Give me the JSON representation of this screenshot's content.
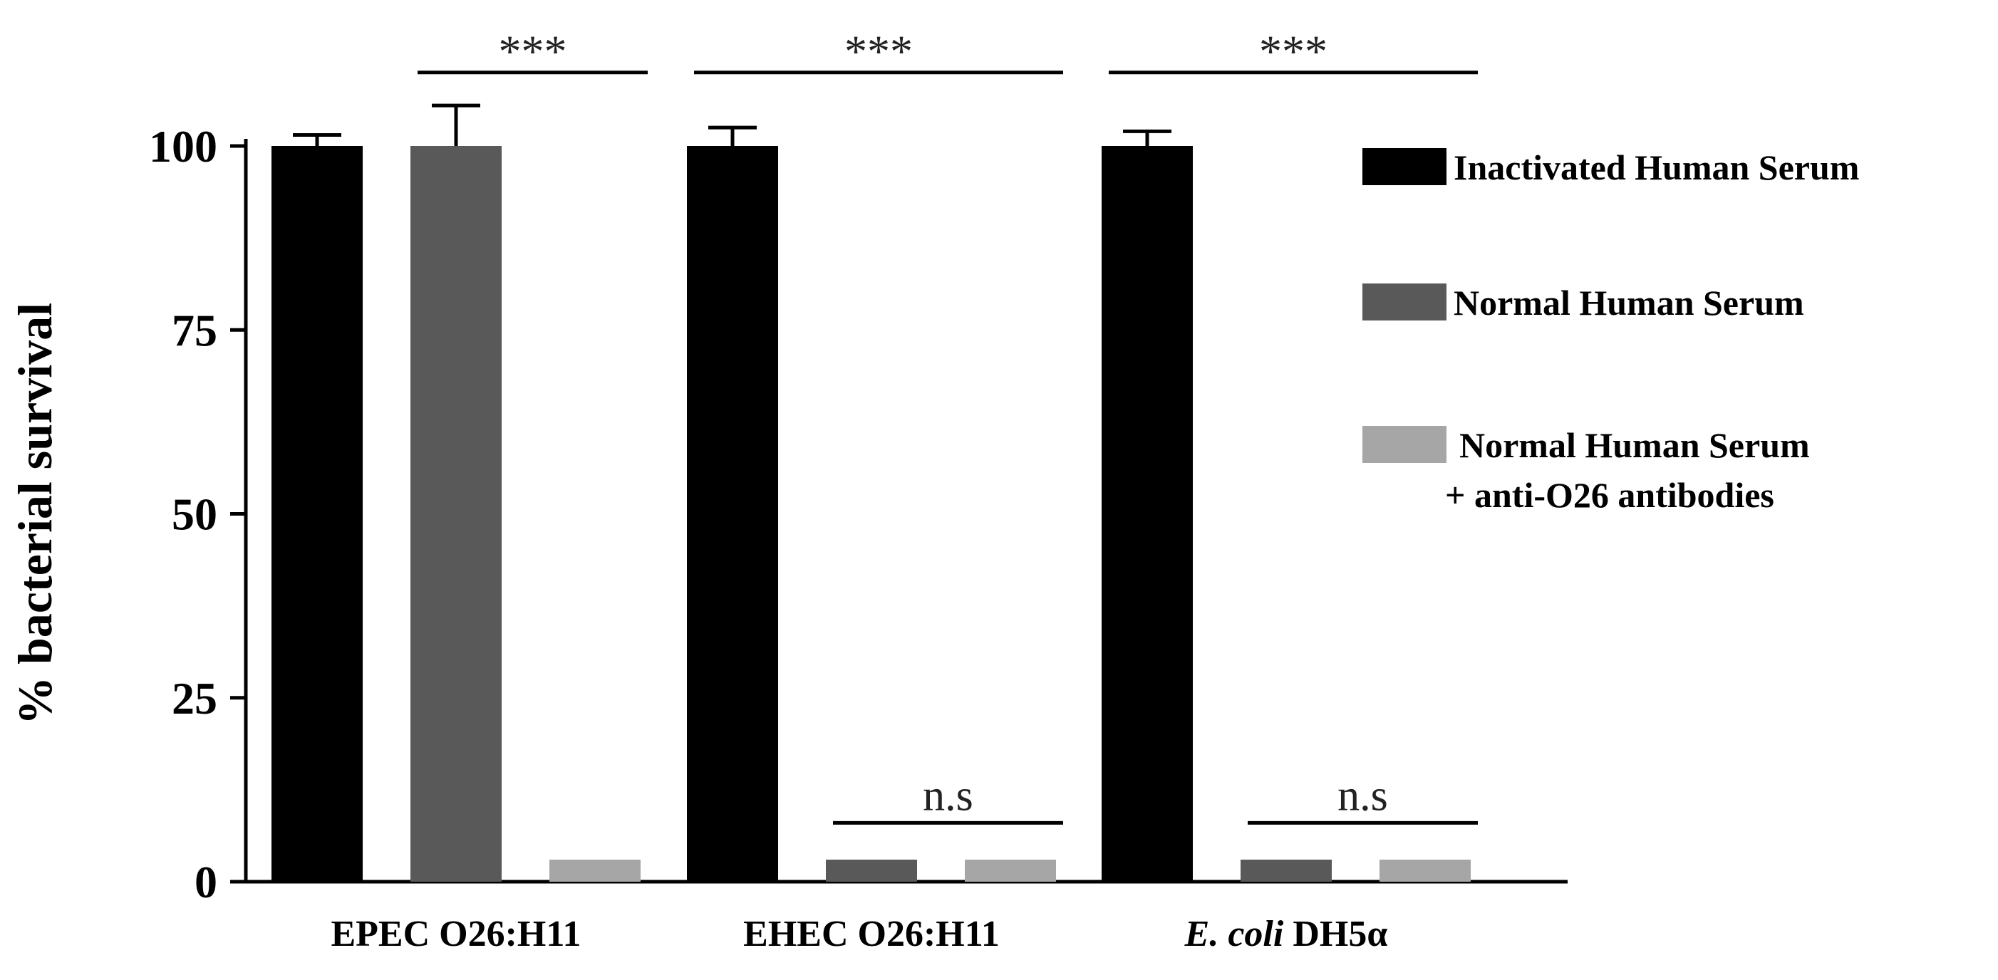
{
  "chart_data": {
    "type": "bar",
    "title": "",
    "ylabel": "% bacterial survival",
    "xlabel": "",
    "ylim": [
      0,
      100
    ],
    "yticks": [
      0,
      25,
      50,
      75,
      100
    ],
    "grid": false,
    "legend_position": "right",
    "categories": [
      {
        "prefix": "",
        "italic": "",
        "suffix": "EPEC O26:H11"
      },
      {
        "prefix": "",
        "italic": "",
        "suffix": "EHEC O26:H11"
      },
      {
        "prefix": "",
        "italic": "E. coli",
        "suffix": " DH5α"
      }
    ],
    "series": [
      {
        "name": "Inactivated Human Serum",
        "color": "#000000",
        "values": [
          100,
          100,
          100
        ],
        "errors": [
          1.5,
          2.5,
          2
        ]
      },
      {
        "name": "Normal Human Serum",
        "color": "#595959",
        "values": [
          100,
          3,
          3
        ],
        "errors": [
          5.5,
          0,
          0
        ]
      },
      {
        "name_lines": [
          "Normal Human Serum",
          "+ anti-O26 antibodies"
        ],
        "color": "#a6a6a6",
        "values": [
          3,
          3,
          3
        ],
        "errors": [
          0,
          0,
          0
        ]
      }
    ],
    "annotations": [
      {
        "text": "***",
        "from": {
          "category": 0,
          "series": 1
        },
        "to": {
          "category": 0,
          "series": 2
        },
        "level": 110
      },
      {
        "text": "***",
        "from": {
          "category": 1,
          "series": 0
        },
        "to": {
          "category": 1,
          "series": 2
        },
        "level": 110
      },
      {
        "text": "***",
        "from": {
          "category": 2,
          "series": 0
        },
        "to": {
          "category": 2,
          "series": 2
        },
        "level": 110
      },
      {
        "text": "n.s",
        "from": {
          "category": 1,
          "series": 1
        },
        "to": {
          "category": 1,
          "series": 2
        },
        "level": 8
      },
      {
        "text": "n.s",
        "from": {
          "category": 2,
          "series": 1
        },
        "to": {
          "category": 2,
          "series": 2
        },
        "level": 8
      }
    ]
  }
}
